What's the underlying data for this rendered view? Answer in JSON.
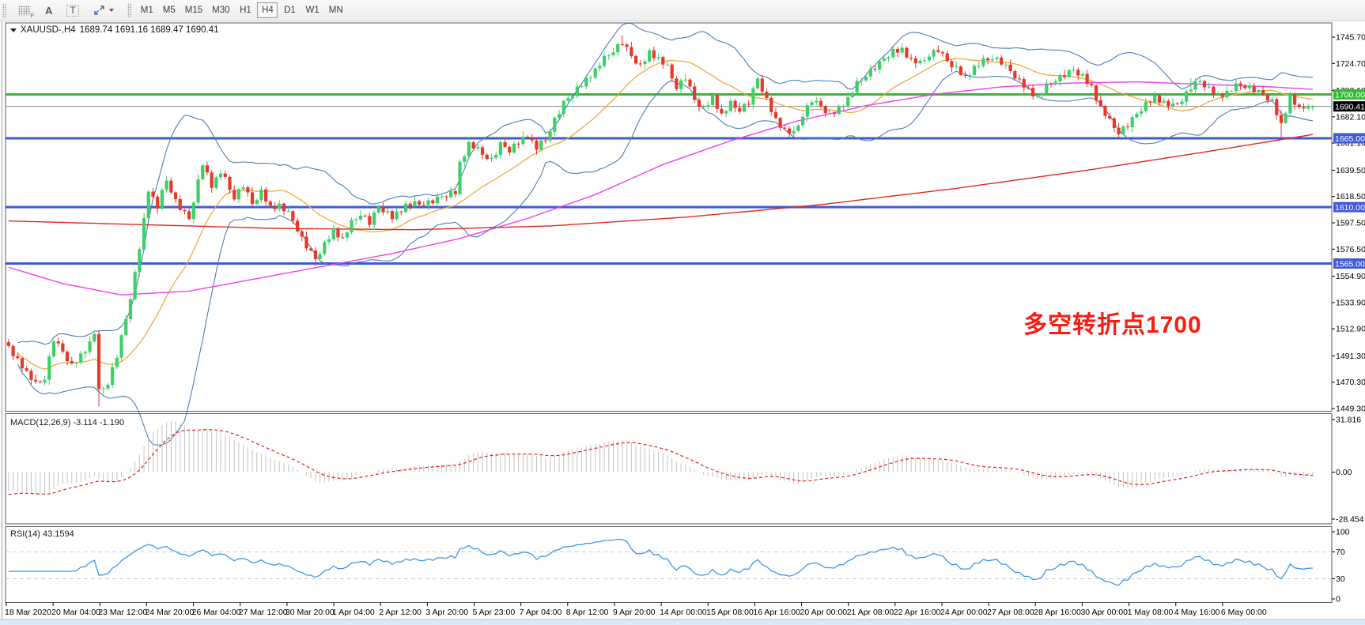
{
  "toolbar": {
    "grid_icon_label": "F",
    "annotate_a_label": "A",
    "annotate_t_label": "T",
    "timeframes": [
      "M1",
      "M5",
      "M15",
      "M30",
      "H1",
      "H4",
      "D1",
      "W1",
      "MN"
    ],
    "active_timeframe": "H4"
  },
  "header": {
    "symbol_tf": "XAUUSD-,H4",
    "ohlc": "1689.74 1691.16 1689.47 1690.41"
  },
  "indicator_labels": {
    "macd": "MACD(12,26,9) -3.114 -1.190",
    "rsi": "RSI(14) 43.1594"
  },
  "annotation": {
    "text": "多空转折点1700"
  },
  "colors": {
    "bull": "#3ecf68",
    "bear": "#e9382a",
    "bollinger": "#4a7fb5",
    "ma_fast_orange": "#efa93f",
    "ma_mid_magenta": "#f03df0",
    "ma_slow_red": "#e22a22",
    "level_green": "#35b935",
    "level_blue": "#4159d8",
    "price_line": "#8c8c8c",
    "price_label_bg": "#000000",
    "macd_hist": "#c2c2c2",
    "macd_signal": "#e02020",
    "rsi_line": "#3f96e8",
    "rsi_level_dash": "#c9c9c9",
    "annotation": "#fd1b11",
    "panel_border": "#5a5a5a",
    "status_strip": "#dce9f9"
  },
  "chart_data": [
    {
      "type": "candlestick",
      "symbol": "XAUUSD-",
      "timeframe": "H4",
      "last_ohlc": {
        "open": 1689.74,
        "high": 1691.16,
        "low": 1689.47,
        "close": 1690.41
      },
      "ylim": [
        1447,
        1757
      ],
      "n_candles": 290,
      "y_ticks": [
        "1745.70",
        "1724.70",
        "1703.10",
        "1682.10",
        "1661.10",
        "1639.50",
        "1618.50",
        "1597.50",
        "1576.50",
        "1554.90",
        "1533.90",
        "1512.90",
        "1491.30",
        "1470.30",
        "1449.30"
      ],
      "close_anchors": [
        [
          0,
          1497
        ],
        [
          3,
          1484
        ],
        [
          6,
          1468
        ],
        [
          8,
          1474
        ],
        [
          10,
          1505
        ],
        [
          12,
          1494
        ],
        [
          14,
          1483
        ],
        [
          16,
          1492
        ],
        [
          18,
          1502
        ],
        [
          19,
          1510
        ],
        [
          20,
          1462
        ],
        [
          22,
          1470
        ],
        [
          24,
          1492
        ],
        [
          26,
          1520
        ],
        [
          28,
          1556
        ],
        [
          30,
          1600
        ],
        [
          31,
          1625
        ],
        [
          33,
          1610
        ],
        [
          35,
          1632
        ],
        [
          37,
          1615
        ],
        [
          40,
          1600
        ],
        [
          43,
          1645
        ],
        [
          45,
          1628
        ],
        [
          47,
          1638
        ],
        [
          50,
          1618
        ],
        [
          52,
          1628
        ],
        [
          54,
          1612
        ],
        [
          56,
          1622
        ],
        [
          58,
          1610
        ],
        [
          60,
          1612
        ],
        [
          63,
          1600
        ],
        [
          65,
          1585
        ],
        [
          68,
          1568
        ],
        [
          70,
          1580
        ],
        [
          72,
          1592
        ],
        [
          74,
          1585
        ],
        [
          76,
          1597
        ],
        [
          78,
          1605
        ],
        [
          80,
          1598
        ],
        [
          82,
          1610
        ],
        [
          85,
          1602
        ],
        [
          88,
          1612
        ],
        [
          90,
          1612
        ],
        [
          93,
          1614
        ],
        [
          96,
          1618
        ],
        [
          99,
          1622
        ],
        [
          100,
          1645
        ],
        [
          102,
          1661
        ],
        [
          104,
          1655
        ],
        [
          107,
          1648
        ],
        [
          109,
          1660
        ],
        [
          111,
          1655
        ],
        [
          113,
          1662
        ],
        [
          115,
          1668
        ],
        [
          117,
          1657
        ],
        [
          119,
          1664
        ],
        [
          121,
          1680
        ],
        [
          123,
          1693
        ],
        [
          125,
          1700
        ],
        [
          127,
          1708
        ],
        [
          129,
          1716
        ],
        [
          131,
          1724
        ],
        [
          133,
          1732
        ],
        [
          136,
          1742
        ],
        [
          138,
          1730
        ],
        [
          140,
          1722
        ],
        [
          142,
          1734
        ],
        [
          144,
          1729
        ],
        [
          146,
          1721
        ],
        [
          148,
          1706
        ],
        [
          150,
          1714
        ],
        [
          152,
          1695
        ],
        [
          154,
          1688
        ],
        [
          156,
          1698
        ],
        [
          158,
          1684
        ],
        [
          160,
          1692
        ],
        [
          162,
          1688
        ],
        [
          164,
          1694
        ],
        [
          166,
          1712
        ],
        [
          168,
          1695
        ],
        [
          170,
          1680
        ],
        [
          172,
          1672
        ],
        [
          174,
          1668
        ],
        [
          176,
          1684
        ],
        [
          178,
          1696
        ],
        [
          180,
          1690
        ],
        [
          182,
          1683
        ],
        [
          184,
          1689
        ],
        [
          186,
          1697
        ],
        [
          188,
          1708
        ],
        [
          190,
          1716
        ],
        [
          192,
          1722
        ],
        [
          194,
          1728
        ],
        [
          196,
          1734
        ],
        [
          198,
          1736
        ],
        [
          200,
          1728
        ],
        [
          202,
          1724
        ],
        [
          204,
          1732
        ],
        [
          206,
          1736
        ],
        [
          208,
          1726
        ],
        [
          210,
          1720
        ],
        [
          212,
          1714
        ],
        [
          214,
          1722
        ],
        [
          216,
          1726
        ],
        [
          218,
          1730
        ],
        [
          220,
          1726
        ],
        [
          222,
          1718
        ],
        [
          224,
          1710
        ],
        [
          226,
          1704
        ],
        [
          228,
          1698
        ],
        [
          230,
          1706
        ],
        [
          232,
          1712
        ],
        [
          234,
          1716
        ],
        [
          236,
          1719
        ],
        [
          238,
          1714
        ],
        [
          240,
          1706
        ],
        [
          242,
          1690
        ],
        [
          244,
          1678
        ],
        [
          246,
          1670
        ],
        [
          248,
          1676
        ],
        [
          250,
          1684
        ],
        [
          252,
          1692
        ],
        [
          254,
          1698
        ],
        [
          256,
          1694
        ],
        [
          258,
          1690
        ],
        [
          260,
          1696
        ],
        [
          262,
          1706
        ],
        [
          264,
          1710
        ],
        [
          266,
          1704
        ],
        [
          268,
          1699
        ],
        [
          270,
          1702
        ],
        [
          273,
          1708
        ],
        [
          276,
          1704
        ],
        [
          278,
          1699
        ],
        [
          280,
          1694
        ],
        [
          282,
          1676
        ],
        [
          284,
          1699
        ],
        [
          286,
          1687
        ],
        [
          288,
          1692
        ],
        [
          289,
          1690.41
        ]
      ],
      "wick_extremes": [
        [
          20,
          "low",
          1451
        ],
        [
          68,
          "low",
          1563
        ],
        [
          136,
          "high",
          1747
        ],
        [
          174,
          "low",
          1666
        ],
        [
          198,
          "high",
          1740
        ],
        [
          206,
          "high",
          1739
        ],
        [
          246,
          "low",
          1666
        ],
        [
          262,
          "high",
          1713
        ],
        [
          282,
          "low",
          1666
        ]
      ],
      "texture": {
        "close_jitter": [
          2.2,
          -1.6,
          1.2,
          -2.6,
          0.8,
          -1.2,
          2.8,
          -0.8,
          -1.8,
          1.4,
          -2.2,
          1.8,
          0.6,
          -1.4
        ],
        "wick_up": [
          2.6,
          1.1,
          3.4,
          0.9,
          2.1,
          1.6,
          4.2,
          1.2,
          2.9,
          1.9,
          1.4,
          3.1
        ],
        "wick_dn": [
          1.6,
          3.2,
          1.0,
          2.7,
          1.2,
          3.6,
          1.8,
          0.8,
          2.3,
          3.9,
          1.3,
          2.5
        ],
        "macd_seed": {
          "ema12_off": 6,
          "ema26_off": 20,
          "signal_init": -16
        }
      },
      "levels": [
        {
          "price": 1700.0,
          "label": "1700.00",
          "color_key": "level_green"
        },
        {
          "price": 1665.0,
          "label": "1665.00",
          "color_key": "level_blue"
        },
        {
          "price": 1610.0,
          "label": "1610.00",
          "color_key": "level_blue"
        },
        {
          "price": 1565.0,
          "label": "1565.00",
          "color_key": "level_blue"
        }
      ],
      "current_price": {
        "price": 1690.41,
        "label": "1690.41"
      },
      "overlays": {
        "bollinger": {
          "period": 20,
          "deviation": 2
        },
        "ma_mid_anchors": [
          [
            0,
            1562
          ],
          [
            12,
            1549
          ],
          [
            25,
            1540
          ],
          [
            40,
            1543
          ],
          [
            55,
            1553
          ],
          [
            70,
            1563
          ],
          [
            85,
            1573
          ],
          [
            100,
            1585
          ],
          [
            115,
            1601
          ],
          [
            130,
            1620
          ],
          [
            145,
            1644
          ],
          [
            160,
            1663
          ],
          [
            175,
            1679
          ],
          [
            190,
            1691
          ],
          [
            205,
            1700
          ],
          [
            220,
            1706
          ],
          [
            235,
            1709
          ],
          [
            250,
            1710
          ],
          [
            265,
            1708
          ],
          [
            280,
            1706
          ],
          [
            289,
            1704
          ]
        ],
        "ma_slow_anchors": [
          [
            0,
            1599
          ],
          [
            30,
            1596
          ],
          [
            60,
            1593
          ],
          [
            90,
            1592
          ],
          [
            120,
            1595
          ],
          [
            150,
            1602
          ],
          [
            180,
            1612
          ],
          [
            210,
            1625
          ],
          [
            240,
            1640
          ],
          [
            265,
            1654
          ],
          [
            289,
            1668
          ]
        ]
      },
      "x_labels": [
        "18 Mar 2020",
        "20 Mar 04:00",
        "23 Mar 12:00",
        "24 Mar 20:00",
        "26 Mar 04:00",
        "27 Mar 12:00",
        "30 Mar 20:00",
        "1 Apr 04:00",
        "2 Apr 12:00",
        "3 Apr 20:00",
        "5 Apr 23:00",
        "7 Apr 04:00",
        "8 Apr 12:00",
        "9 Apr 20:00",
        "14 Apr 00:00",
        "15 Apr 08:00",
        "16 Apr 16:00",
        "20 Apr 00:00",
        "21 Apr 08:00",
        "22 Apr 16:00",
        "24 Apr 00:00",
        "27 Apr 08:00",
        "28 Apr 16:00",
        "30 Apr 00:00",
        "1 May 08:00",
        "4 May 16:00",
        "6 May 00:00"
      ],
      "annotation_text": "多空转折点1700"
    },
    {
      "type": "macd",
      "label": "MACD(12,26,9)",
      "params": [
        12,
        26,
        9
      ],
      "current_values": [
        -3.114,
        -1.19
      ],
      "y_ticks": [
        "31.816",
        "0.00",
        "-28.454"
      ],
      "ylim": [
        -28.454,
        31.816
      ],
      "derived_from": "candlestick closes"
    },
    {
      "type": "rsi",
      "label": "RSI(14)",
      "period": 14,
      "current_value": 43.1594,
      "y_ticks": [
        "100",
        "70",
        "30",
        "0"
      ],
      "levels": [
        70,
        30
      ],
      "ylim": [
        0,
        100
      ],
      "derived_from": "candlestick closes"
    }
  ]
}
